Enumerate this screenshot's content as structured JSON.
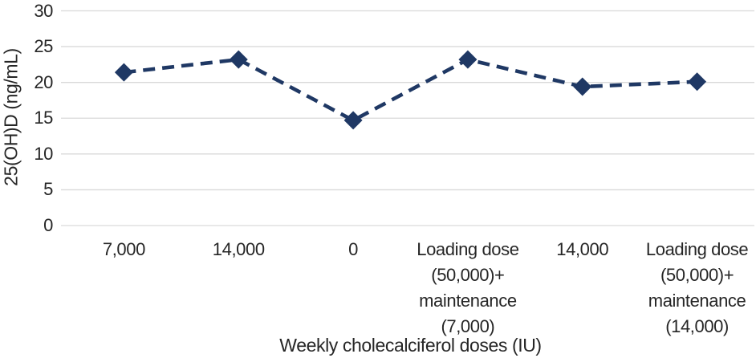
{
  "chart_data": {
    "type": "line",
    "title": "",
    "xlabel": "Weekly cholecalciferol doses (IU)",
    "ylabel": "25(OH)D (ng/mL)",
    "categories": [
      "7,000",
      "14,000",
      "0",
      [
        "Loading dose",
        "(50,000)+",
        "maintenance",
        "(7,000)"
      ],
      "14,000",
      [
        "Loading dose",
        "(50,000)+",
        "maintenance",
        "(14,000)"
      ]
    ],
    "values": [
      21.4,
      23.2,
      14.7,
      23.2,
      19.4,
      20.1
    ],
    "ylim": [
      0,
      30
    ],
    "yticks": [
      0,
      5,
      10,
      15,
      20,
      25,
      30
    ],
    "line_style": "dashed",
    "marker_shape": "diamond",
    "legend_position": "none",
    "grid": "horizontal",
    "colors": {
      "series": "#1f3864",
      "gridline": "#d9d9d9",
      "text": "#262626",
      "background": "#ffffff"
    }
  }
}
